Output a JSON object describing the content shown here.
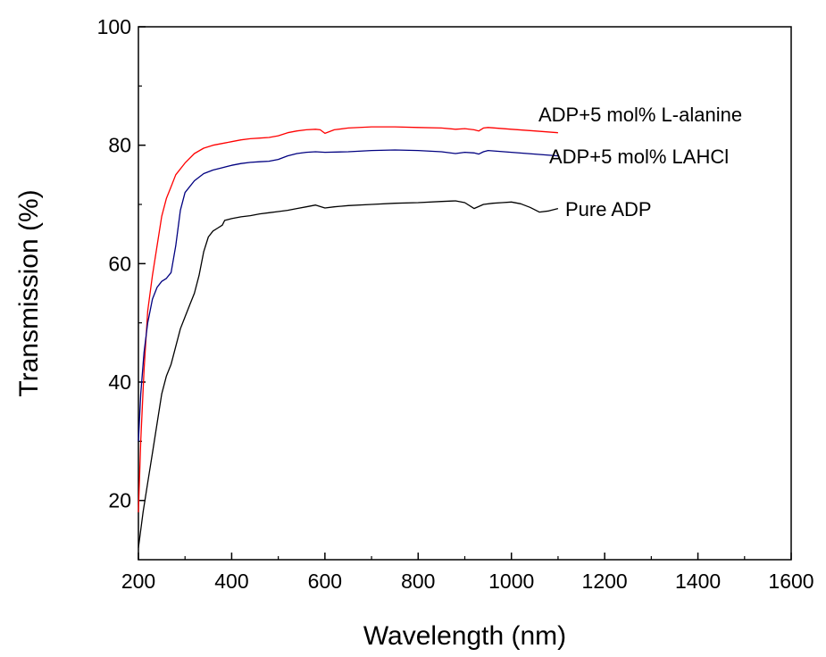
{
  "chart_data": {
    "type": "line",
    "title": "",
    "xlabel": "Wavelength (nm)",
    "ylabel": "Transmission (%)",
    "xlim": [
      200,
      1600
    ],
    "ylim": [
      10,
      100
    ],
    "xticks": [
      200,
      400,
      600,
      800,
      1000,
      1200,
      1400,
      1600
    ],
    "yticks": [
      20,
      40,
      60,
      80,
      100
    ],
    "grid": false,
    "legend": "inline labels at line ends",
    "series": [
      {
        "name": "ADP+5 mol% L-alanine",
        "color": "#ff0000",
        "x": [
          200,
          205,
          212,
          220,
          230,
          240,
          250,
          260,
          270,
          280,
          300,
          320,
          340,
          360,
          380,
          400,
          420,
          440,
          460,
          480,
          500,
          520,
          540,
          560,
          580,
          590,
          600,
          620,
          650,
          700,
          750,
          800,
          850,
          880,
          900,
          920,
          930,
          940,
          950,
          1000,
          1050,
          1100
        ],
        "y": [
          18,
          30,
          42,
          52,
          58,
          63,
          68,
          71,
          73,
          75,
          77,
          78.6,
          79.5,
          80,
          80.3,
          80.6,
          80.9,
          81.1,
          81.2,
          81.3,
          81.6,
          82.1,
          82.4,
          82.6,
          82.7,
          82.6,
          82.0,
          82.6,
          82.9,
          83.1,
          83.1,
          83.0,
          82.9,
          82.7,
          82.8,
          82.6,
          82.4,
          82.9,
          83.0,
          82.7,
          82.4,
          82.1
        ]
      },
      {
        "name": "ADP+5 mol% LAHCl",
        "color": "#000080",
        "x": [
          200,
          205,
          212,
          220,
          230,
          240,
          250,
          260,
          270,
          280,
          290,
          300,
          320,
          340,
          360,
          380,
          400,
          420,
          440,
          460,
          480,
          500,
          520,
          540,
          560,
          580,
          600,
          650,
          700,
          750,
          800,
          850,
          880,
          900,
          920,
          930,
          940,
          950,
          1000,
          1050,
          1100
        ],
        "y": [
          30,
          38,
          45,
          50,
          54,
          56,
          57,
          57.5,
          58.5,
          63,
          69,
          72,
          74,
          75.2,
          75.8,
          76.2,
          76.6,
          76.9,
          77.1,
          77.2,
          77.3,
          77.6,
          78.2,
          78.6,
          78.8,
          78.9,
          78.8,
          78.9,
          79.1,
          79.2,
          79.1,
          78.9,
          78.6,
          78.8,
          78.7,
          78.5,
          78.9,
          79.1,
          78.8,
          78.5,
          78.2
        ]
      },
      {
        "name": "Pure ADP",
        "color": "#000000",
        "x": [
          200,
          210,
          220,
          230,
          240,
          250,
          260,
          270,
          280,
          290,
          300,
          310,
          320,
          330,
          340,
          350,
          360,
          370,
          380,
          385,
          400,
          420,
          440,
          460,
          480,
          500,
          520,
          540,
          560,
          580,
          600,
          620,
          650,
          700,
          750,
          800,
          850,
          880,
          900,
          920,
          940,
          960,
          980,
          1000,
          1020,
          1040,
          1060,
          1080,
          1100
        ],
        "y": [
          12,
          18,
          23,
          28,
          33,
          38,
          41,
          43,
          46,
          49,
          51,
          53,
          55,
          58,
          62,
          64.5,
          65.5,
          66,
          66.5,
          67.3,
          67.6,
          67.9,
          68.1,
          68.4,
          68.6,
          68.8,
          69.0,
          69.3,
          69.6,
          69.9,
          69.4,
          69.6,
          69.8,
          70.0,
          70.2,
          70.3,
          70.5,
          70.6,
          70.3,
          69.3,
          70.0,
          70.2,
          70.3,
          70.4,
          70.1,
          69.5,
          68.7,
          68.9,
          69.3
        ]
      }
    ]
  }
}
